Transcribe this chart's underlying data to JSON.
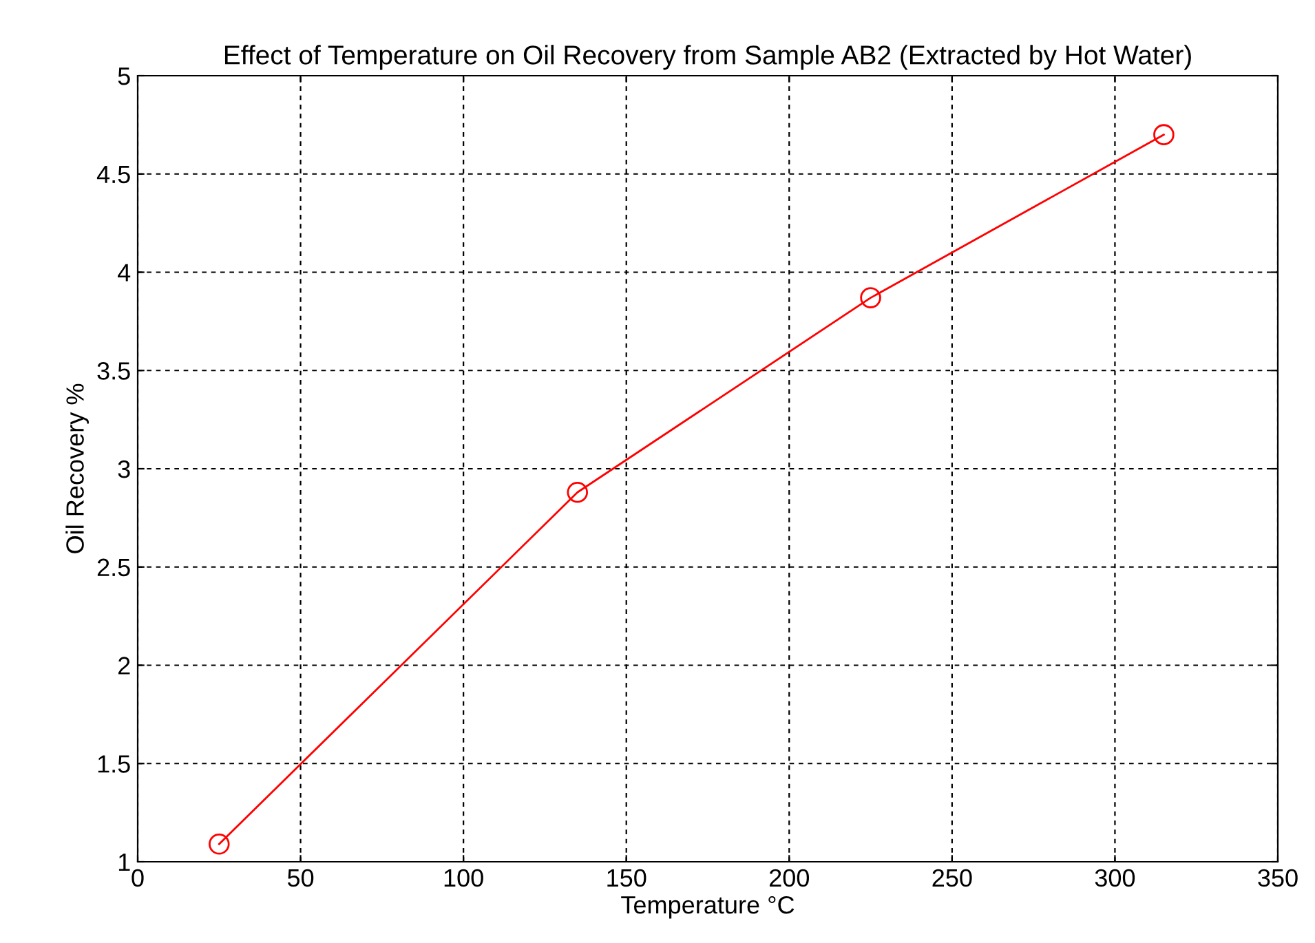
{
  "chart_data": {
    "type": "line",
    "title": "Effect of Temperature on Oil Recovery from Sample AB2 (Extracted by Hot Water)",
    "xlabel": "Temperature °C",
    "ylabel": "Oil Recovery %",
    "x": [
      25,
      135,
      225,
      315
    ],
    "series": [
      {
        "color": "#ff0000",
        "values": [
          1.09,
          2.88,
          3.87,
          4.7
        ]
      }
    ],
    "xlim": [
      0,
      350
    ],
    "xticks": [
      0,
      50,
      100,
      150,
      200,
      250,
      300,
      350
    ],
    "ylim": [
      1,
      5
    ],
    "yticks": [
      1,
      1.5,
      2,
      2.5,
      3,
      3.5,
      4,
      4.5,
      5
    ],
    "grid": true,
    "marker": "circle",
    "line_style": "solid"
  }
}
